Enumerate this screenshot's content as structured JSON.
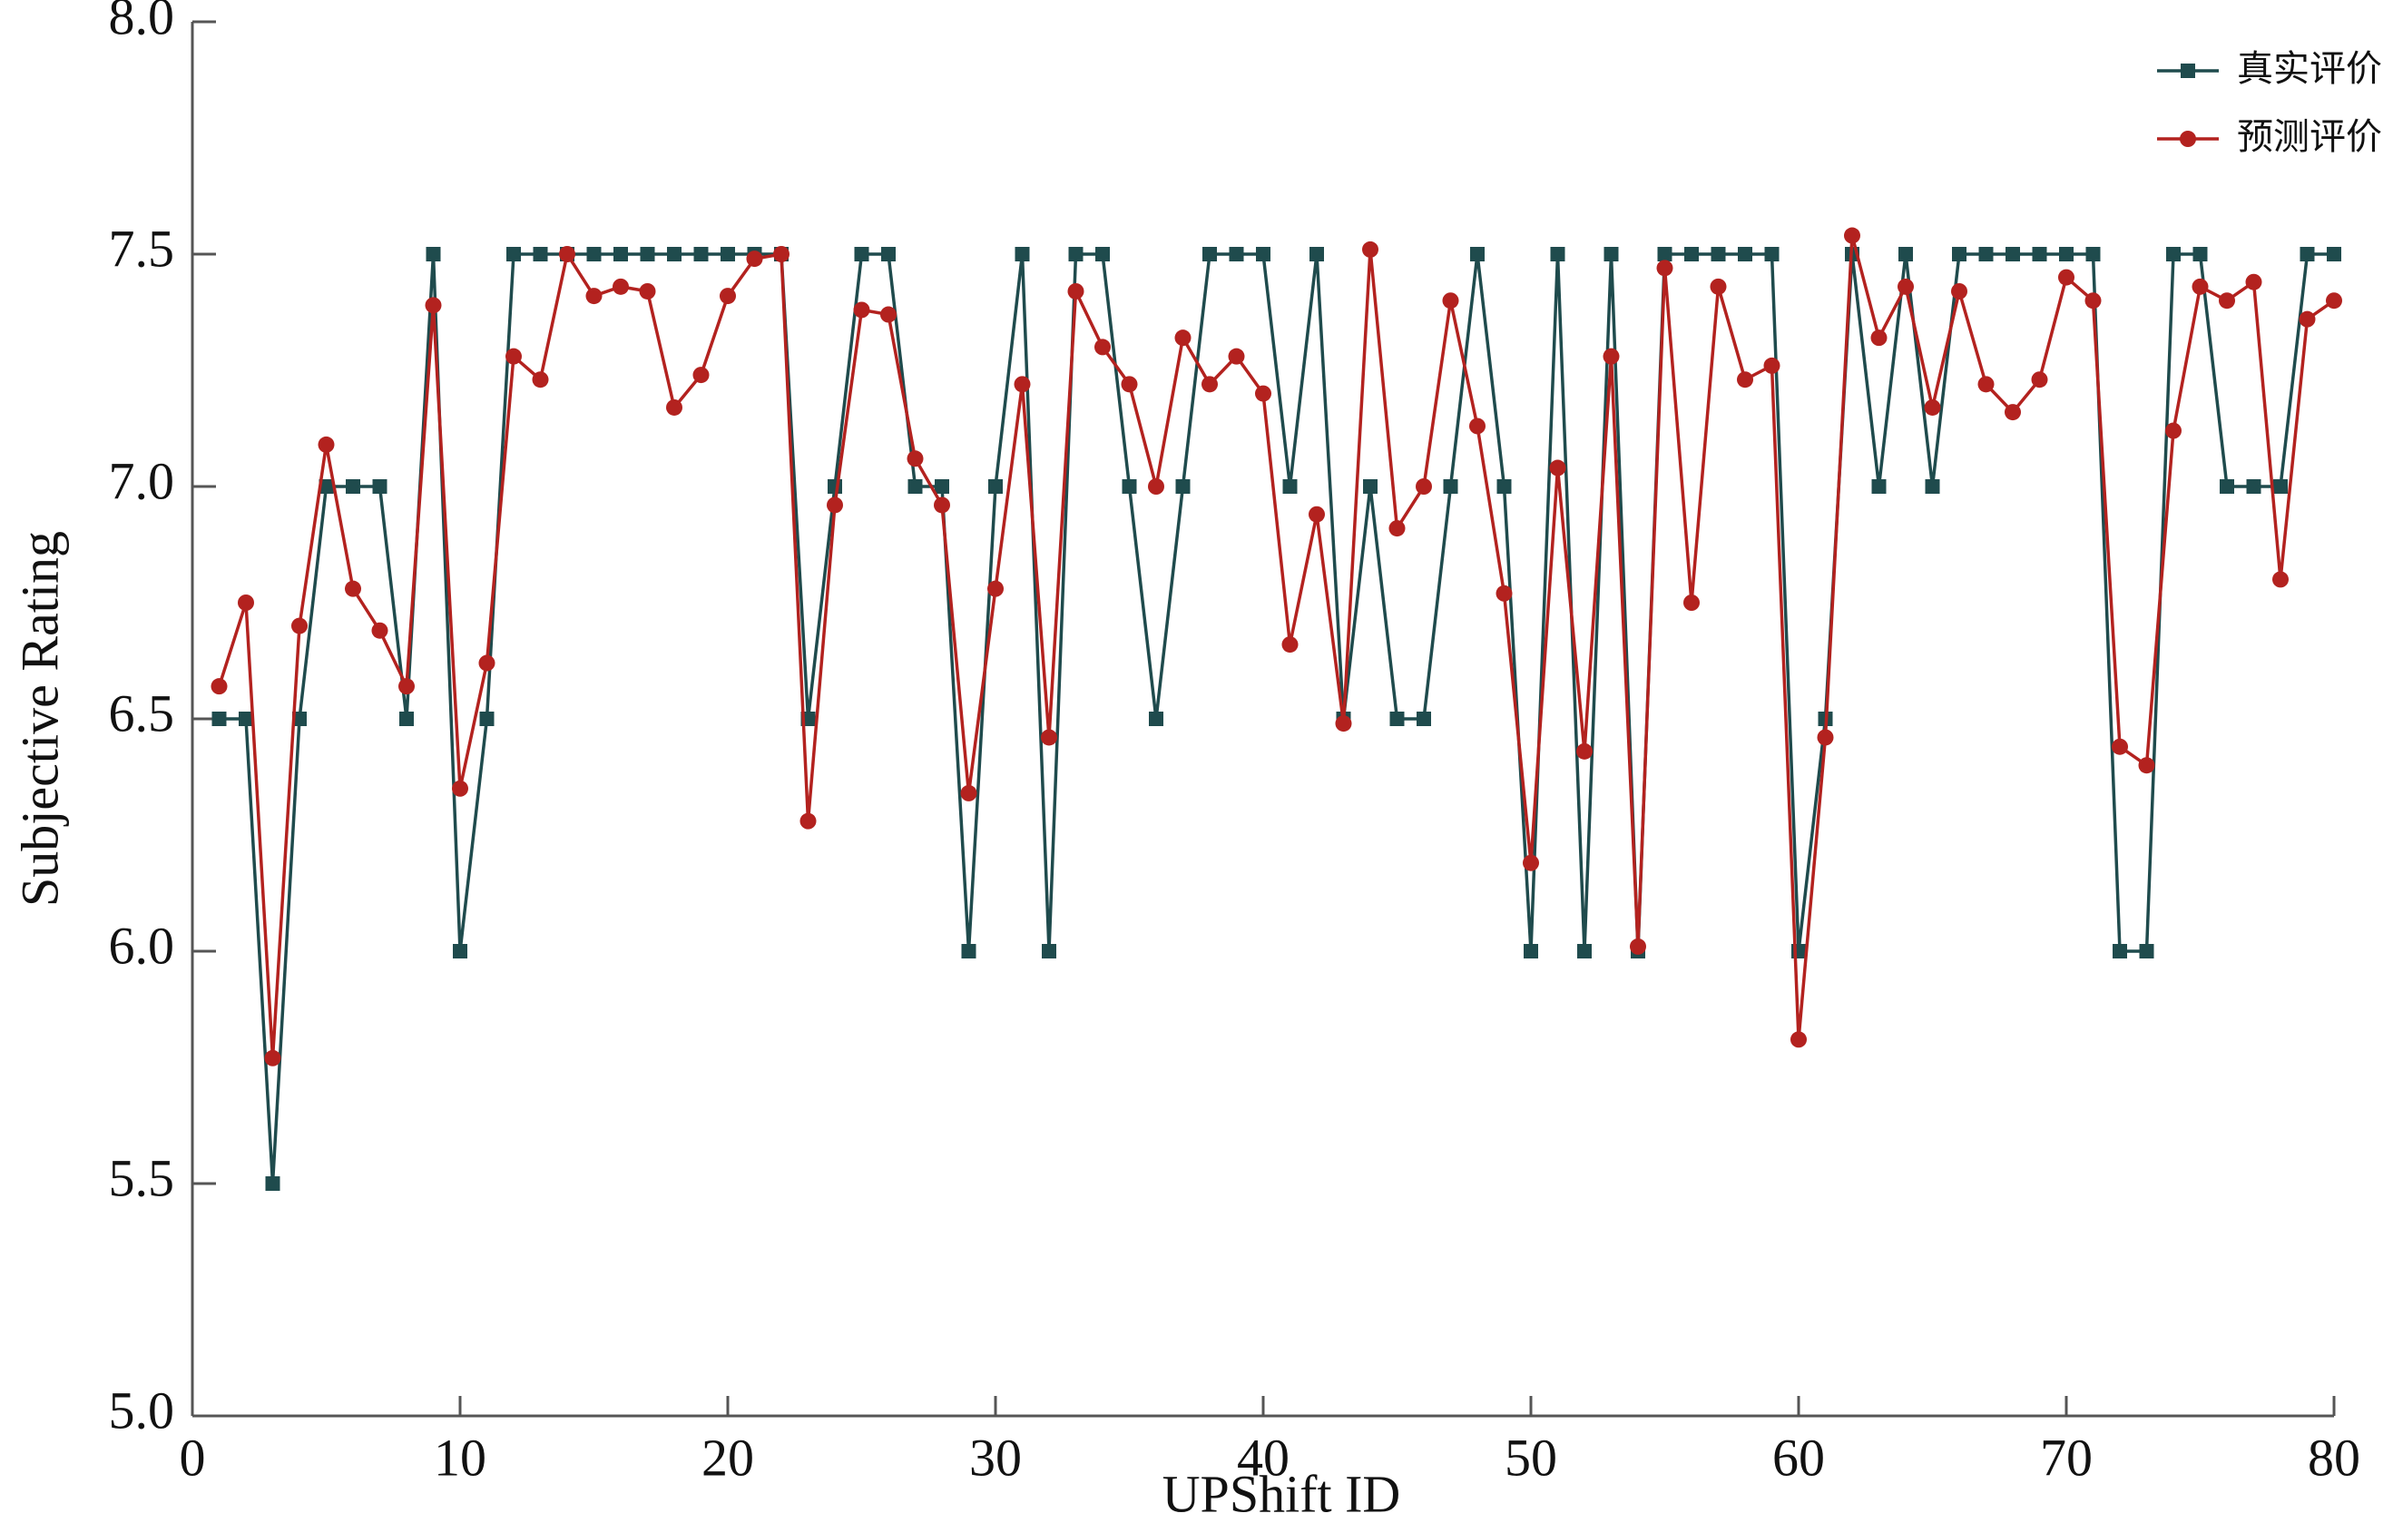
{
  "chart_data": {
    "type": "line",
    "xlabel": "UPShift ID",
    "ylabel": "Subjective Rating",
    "x": [
      1,
      2,
      3,
      4,
      5,
      6,
      7,
      8,
      9,
      10,
      11,
      12,
      13,
      14,
      15,
      16,
      17,
      18,
      19,
      20,
      21,
      22,
      23,
      24,
      25,
      26,
      27,
      28,
      29,
      30,
      31,
      32,
      33,
      34,
      35,
      36,
      37,
      38,
      39,
      40,
      41,
      42,
      43,
      44,
      45,
      46,
      47,
      48,
      49,
      50,
      51,
      52,
      53,
      54,
      55,
      56,
      57,
      58,
      59,
      60,
      61,
      62,
      63,
      64,
      65,
      66,
      67,
      68,
      69,
      70,
      71,
      72,
      73,
      74,
      75,
      76,
      77,
      78,
      79,
      80
    ],
    "series": [
      {
        "name": "真实评价",
        "color": "#1f4b4d",
        "marker": "square",
        "values": [
          6.5,
          6.5,
          5.5,
          6.5,
          7.0,
          7.0,
          7.0,
          6.5,
          7.5,
          6.0,
          6.5,
          7.5,
          7.5,
          7.5,
          7.5,
          7.5,
          7.5,
          7.5,
          7.5,
          7.5,
          7.5,
          7.5,
          6.5,
          7.0,
          7.5,
          7.5,
          7.0,
          7.0,
          6.0,
          7.0,
          7.5,
          6.0,
          7.5,
          7.5,
          7.0,
          6.5,
          7.0,
          7.5,
          7.5,
          7.5,
          7.0,
          7.5,
          6.5,
          7.0,
          6.5,
          6.5,
          7.0,
          7.5,
          7.0,
          6.0,
          7.5,
          6.0,
          7.5,
          6.0,
          7.5,
          7.5,
          7.5,
          7.5,
          7.5,
          6.0,
          6.5,
          7.5,
          7.0,
          7.5,
          7.0,
          7.5,
          7.5,
          7.5,
          7.5,
          7.5,
          7.5,
          6.0,
          6.0,
          7.5,
          7.5,
          7.0,
          7.0,
          7.0,
          7.5,
          7.5
        ]
      },
      {
        "name": "预测评价",
        "color": "#b3221f",
        "marker": "circle",
        "values": [
          6.57,
          6.75,
          5.77,
          6.7,
          7.09,
          6.78,
          6.69,
          6.57,
          7.39,
          6.35,
          6.62,
          7.28,
          7.23,
          7.5,
          7.41,
          7.43,
          7.42,
          7.17,
          7.24,
          7.41,
          7.49,
          7.5,
          6.28,
          6.96,
          7.38,
          7.37,
          7.06,
          6.96,
          6.34,
          6.78,
          7.22,
          6.46,
          7.42,
          7.3,
          7.22,
          7.0,
          7.32,
          7.22,
          7.28,
          7.2,
          6.66,
          6.94,
          6.49,
          7.51,
          6.91,
          7.0,
          7.4,
          7.13,
          6.77,
          6.19,
          7.04,
          6.43,
          7.28,
          6.01,
          7.47,
          6.75,
          7.43,
          7.23,
          7.26,
          5.81,
          6.46,
          7.54,
          7.32,
          7.43,
          7.17,
          7.42,
          7.22,
          7.16,
          7.23,
          7.45,
          7.4,
          6.44,
          6.4,
          7.12,
          7.43,
          7.4,
          7.44,
          6.8,
          7.36,
          7.4
        ]
      }
    ],
    "xlim": [
      0,
      80
    ],
    "xticks": [
      0,
      10,
      20,
      30,
      40,
      50,
      60,
      70,
      80
    ],
    "ylim": [
      5.0,
      8.0
    ],
    "yticks": [
      {
        "value": 5,
        "label": "5.0"
      },
      5.5,
      {
        "value": 6,
        "label": "6.0"
      },
      6.5,
      {
        "value": 7,
        "label": "7.0"
      },
      7.5,
      {
        "value": 8,
        "label": "8.0"
      }
    ],
    "grid": false,
    "legend": "upper right"
  }
}
